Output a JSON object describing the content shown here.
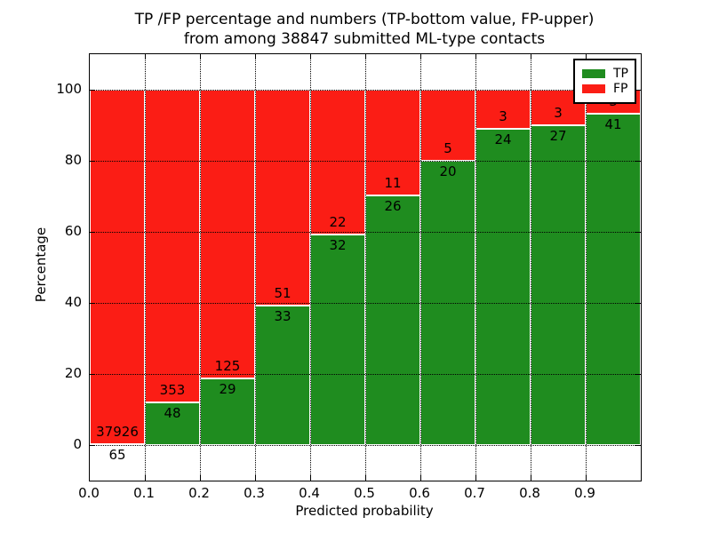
{
  "chart_data": {
    "type": "bar",
    "stacked": true,
    "title_line1": "TP /FP percentage and numbers (TP-bottom value, FP-upper)",
    "title_line2": "from among 38847 submitted ML-type contacts",
    "xlabel": "Predicted probability",
    "ylabel": "Percentage",
    "total_contacts": 38847,
    "xlim": [
      0.0,
      1.0
    ],
    "ylim": [
      -10,
      110
    ],
    "yticks": [
      0,
      20,
      40,
      60,
      80,
      100
    ],
    "xtick_labels": [
      "0.0",
      "0.1",
      "0.2",
      "0.3",
      "0.4",
      "0.5",
      "0.6",
      "0.7",
      "0.8",
      "0.9"
    ],
    "bin_width": 0.1,
    "grid": true,
    "legend_position": "upper right",
    "legend": [
      {
        "label": "TP",
        "color": "#1f8c1f"
      },
      {
        "label": "FP",
        "color": "#fb1d15"
      }
    ],
    "bins": [
      {
        "x_start": 0.0,
        "tp": 65,
        "fp": 37926,
        "tp_pct": 0.17
      },
      {
        "x_start": 0.1,
        "tp": 48,
        "fp": 353,
        "tp_pct": 11.97
      },
      {
        "x_start": 0.2,
        "tp": 29,
        "fp": 125,
        "tp_pct": 18.83
      },
      {
        "x_start": 0.3,
        "tp": 33,
        "fp": 51,
        "tp_pct": 39.29
      },
      {
        "x_start": 0.4,
        "tp": 32,
        "fp": 22,
        "tp_pct": 59.26
      },
      {
        "x_start": 0.5,
        "tp": 26,
        "fp": 11,
        "tp_pct": 70.27
      },
      {
        "x_start": 0.6,
        "tp": 20,
        "fp": 5,
        "tp_pct": 80.0
      },
      {
        "x_start": 0.7,
        "tp": 24,
        "fp": 3,
        "tp_pct": 88.89
      },
      {
        "x_start": 0.8,
        "tp": 27,
        "fp": 3,
        "tp_pct": 90.0
      },
      {
        "x_start": 0.9,
        "tp": 41,
        "fp": 3,
        "tp_pct": 93.18
      }
    ]
  }
}
